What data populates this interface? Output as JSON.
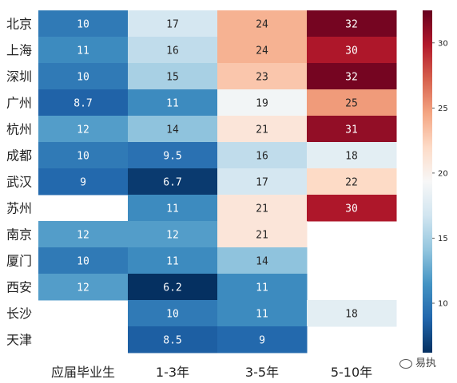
{
  "chart_data": {
    "type": "heatmap",
    "rows": [
      "北京",
      "上海",
      "深圳",
      "广州",
      "杭州",
      "成都",
      "武汉",
      "苏州",
      "南京",
      "厦门",
      "西安",
      "长沙",
      "天津"
    ],
    "columns": [
      "应届毕业生",
      "1-3年",
      "3-5年",
      "5-10年"
    ],
    "values": [
      [
        10,
        17,
        24,
        32
      ],
      [
        11,
        16,
        24,
        30
      ],
      [
        10,
        15,
        23,
        32
      ],
      [
        8.7,
        11,
        19,
        25
      ],
      [
        12,
        14,
        21,
        31
      ],
      [
        10,
        9.5,
        16,
        18
      ],
      [
        9,
        6.7,
        17,
        22
      ],
      [
        null,
        11,
        21,
        30
      ],
      [
        12,
        12,
        21,
        null
      ],
      [
        10,
        11,
        14,
        null
      ],
      [
        12,
        6.2,
        11,
        null
      ],
      [
        null,
        10,
        11,
        18
      ],
      [
        null,
        8.5,
        9,
        null
      ]
    ],
    "value_labels": [
      [
        "10",
        "17",
        "24",
        "32"
      ],
      [
        "11",
        "16",
        "24",
        "30"
      ],
      [
        "10",
        "15",
        "23",
        "32"
      ],
      [
        "8.7",
        "11",
        "19",
        "25"
      ],
      [
        "12",
        "14",
        "21",
        "31"
      ],
      [
        "10",
        "9.5",
        "16",
        "18"
      ],
      [
        "9",
        "6.7",
        "17",
        "22"
      ],
      [
        "",
        "11",
        "21",
        "30"
      ],
      [
        "12",
        "12",
        "21",
        ""
      ],
      [
        "10",
        "11",
        "14",
        ""
      ],
      [
        "12",
        "6.2",
        "11",
        ""
      ],
      [
        "",
        "10",
        "11",
        "18"
      ],
      [
        "",
        "8.5",
        "9",
        ""
      ]
    ],
    "colormap": "RdBu_r",
    "vmin": 6.2,
    "vmax": 32.5,
    "colorbar_ticks": [
      10,
      15,
      20,
      25,
      30
    ]
  },
  "watermark": "易执",
  "colors": {
    "low": "#053061",
    "mid": "#f7f7f7",
    "high": "#67001f"
  }
}
